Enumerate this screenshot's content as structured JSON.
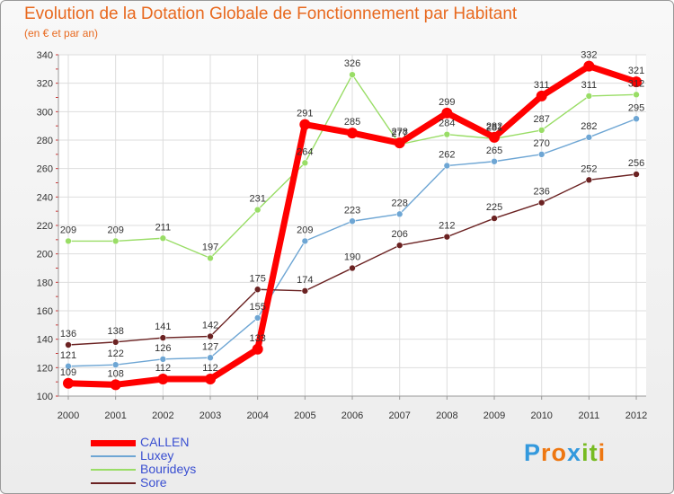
{
  "chart_data": {
    "type": "line",
    "title": "Evolution de la Dotation Globale de Fonctionnement par Habitant",
    "subtitle": "(en € et par an)",
    "xlabel": "",
    "ylabel": "",
    "ylim": [
      100,
      340
    ],
    "yticks": [
      100,
      120,
      140,
      160,
      180,
      200,
      220,
      240,
      260,
      280,
      300,
      320,
      340
    ],
    "categories": [
      "2000",
      "2001",
      "2002",
      "2003",
      "2004",
      "2005",
      "2006",
      "2007",
      "2008",
      "2009",
      "2010",
      "2011",
      "2012"
    ],
    "grid": true,
    "legend_position": "bottom-left",
    "series": [
      {
        "name": "CALLEN",
        "color": "#ff0000",
        "values": [
          109,
          108,
          112,
          112,
          133,
          291,
          285,
          278,
          299,
          282,
          311,
          332,
          321
        ]
      },
      {
        "name": "Luxey",
        "color": "#6ea6d4",
        "values": [
          121,
          122,
          126,
          127,
          155,
          209,
          223,
          228,
          262,
          265,
          270,
          282,
          295
        ]
      },
      {
        "name": "Bourideys",
        "color": "#99dd66",
        "values": [
          209,
          209,
          211,
          197,
          231,
          264,
          326,
          277,
          284,
          281,
          287,
          311,
          312
        ]
      },
      {
        "name": "Sore",
        "color": "#6b2222",
        "values": [
          136,
          138,
          141,
          142,
          175,
          174,
          190,
          206,
          212,
          225,
          236,
          252,
          256
        ]
      }
    ]
  },
  "logo": {
    "text": "Proxiti",
    "letters": [
      "P",
      "r",
      "o",
      "x",
      "i",
      "t",
      "i"
    ],
    "colors": [
      "#3399dd",
      "#ee7711",
      "#ee7711",
      "#3399dd",
      "#77bb22",
      "#77bb22",
      "#ee7711"
    ]
  }
}
